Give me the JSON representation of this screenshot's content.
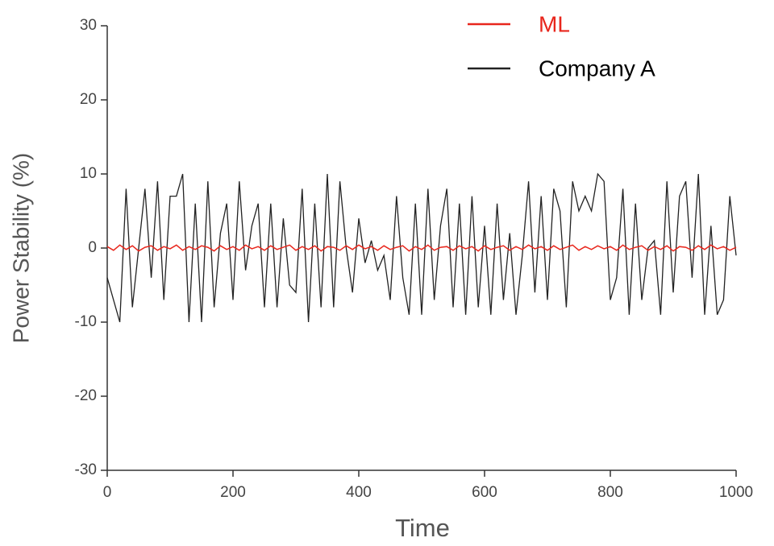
{
  "chart_data": {
    "type": "line",
    "x_label": "Time",
    "y_label": "Power Stability (%)",
    "x": [
      0,
      10,
      20,
      30,
      40,
      50,
      60,
      70,
      80,
      90,
      100,
      110,
      120,
      130,
      140,
      150,
      160,
      170,
      180,
      190,
      200,
      210,
      220,
      230,
      240,
      250,
      260,
      270,
      280,
      290,
      300,
      310,
      320,
      330,
      340,
      350,
      360,
      370,
      380,
      390,
      400,
      410,
      420,
      430,
      440,
      450,
      460,
      470,
      480,
      490,
      500,
      510,
      520,
      530,
      540,
      550,
      560,
      570,
      580,
      590,
      600,
      610,
      620,
      630,
      640,
      650,
      660,
      670,
      680,
      690,
      700,
      710,
      720,
      730,
      740,
      750,
      760,
      770,
      780,
      790,
      800,
      810,
      820,
      830,
      840,
      850,
      860,
      870,
      880,
      890,
      900,
      910,
      920,
      930,
      940,
      950,
      960,
      970,
      980,
      990,
      1000
    ],
    "series": [
      {
        "name": "ML",
        "color": "#e8261c",
        "values": [
          0.2,
          -0.3,
          0.4,
          -0.2,
          0.3,
          -0.4,
          0.1,
          0.3,
          -0.3,
          0.2,
          -0.1,
          0.4,
          -0.3,
          0.2,
          -0.2,
          0.3,
          0.1,
          -0.4,
          0.3,
          -0.2,
          0.2,
          -0.3,
          0.4,
          -0.1,
          0.2,
          -0.3,
          0.3,
          -0.2,
          0.1,
          0.4,
          -0.3,
          0.2,
          -0.2,
          0.3,
          -0.4,
          0.2,
          0.1,
          -0.3,
          0.3,
          -0.2,
          0.4,
          -0.1,
          0.2,
          -0.3,
          0.3,
          -0.2,
          0.1,
          0.3,
          -0.4,
          0.2,
          -0.2,
          0.4,
          -0.3,
          0.1,
          0.2,
          -0.3,
          0.3,
          -0.1,
          0.2,
          -0.4,
          0.3,
          -0.2,
          0.1,
          0.3,
          -0.3,
          0.2,
          -0.2,
          0.4,
          -0.1,
          0.2,
          -0.3,
          0.3,
          -0.2,
          0.1,
          0.4,
          -0.3,
          0.2,
          -0.2,
          0.3,
          -0.1,
          0.2,
          -0.3,
          0.4,
          -0.2,
          0.1,
          0.3,
          -0.3,
          0.2,
          -0.2,
          0.3,
          -0.4,
          0.2,
          0.1,
          -0.3,
          0.3,
          -0.2,
          0.4,
          -0.1,
          0.2,
          -0.3,
          0.1
        ]
      },
      {
        "name": "Company A",
        "color": "#222222",
        "values": [
          -4,
          -7,
          -10,
          8,
          -8,
          0,
          8,
          -4,
          9,
          -7,
          7,
          7,
          10,
          -10,
          6,
          -10,
          9,
          -8,
          2,
          6,
          -7,
          9,
          -3,
          3,
          6,
          -8,
          6,
          -8,
          4,
          -5,
          -6,
          8,
          -10,
          6,
          -8,
          10,
          -8,
          9,
          0,
          -6,
          4,
          -2,
          1,
          -3,
          -1,
          -7,
          7,
          -4,
          -9,
          6,
          -9,
          8,
          -7,
          3,
          8,
          -8,
          6,
          -9,
          7,
          -8,
          3,
          -9,
          6,
          -7,
          2,
          -9,
          -1,
          9,
          -6,
          7,
          -7,
          8,
          5,
          -8,
          9,
          5,
          7,
          5,
          10,
          9,
          -7,
          -4,
          8,
          -9,
          6,
          -7,
          0,
          1,
          -9,
          9,
          -6,
          7,
          9,
          -4,
          10,
          -9,
          3,
          -9,
          -7,
          7,
          -1
        ]
      }
    ],
    "xlim": [
      0,
      1000
    ],
    "xticks": [
      0,
      200,
      400,
      600,
      800,
      1000
    ],
    "ylim": [
      -30,
      30
    ],
    "yticks": [
      -30,
      -20,
      -10,
      0,
      10,
      20,
      30
    ],
    "legend": "top-right"
  }
}
